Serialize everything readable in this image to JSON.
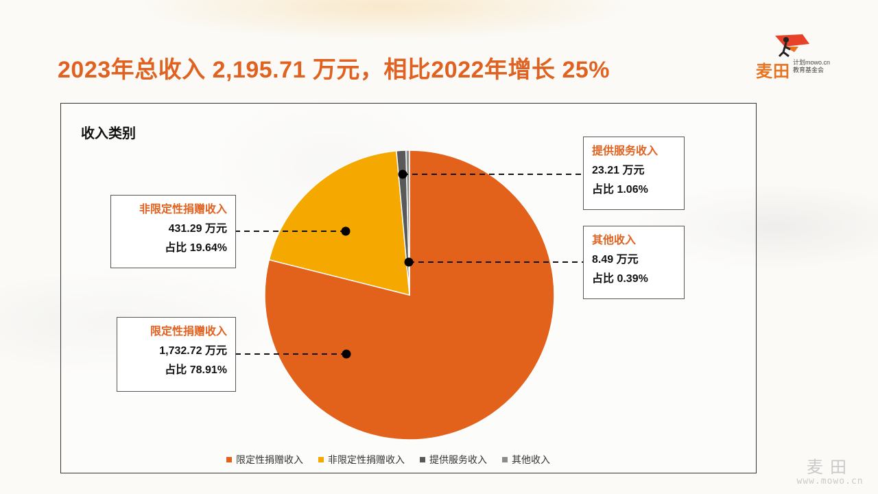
{
  "slide": {
    "title": "2023年总收入 2,195.71 万元，相比2022年增长 25%"
  },
  "logo": {
    "brand": "麦田",
    "line1": "计划mowo.cn",
    "line2": "教育基金会"
  },
  "watermark": {
    "brand": "麦田",
    "url": "www.mowo.cn"
  },
  "chart_data": {
    "type": "pie",
    "title": "收入类别",
    "unit": "万元",
    "categories": [
      "限定性捐赠收入",
      "非限定性捐赠收入",
      "提供服务收入",
      "其他收入"
    ],
    "values": [
      1732.72,
      431.29,
      23.21,
      8.49
    ],
    "percentages": [
      78.91,
      19.64,
      1.06,
      0.39
    ],
    "colors": [
      "#e2621b",
      "#f5a800",
      "#595959",
      "#8c8c8c"
    ],
    "legend_position": "bottom",
    "callouts": [
      {
        "name": "限定性捐赠收入",
        "value": "1,732.72 万元",
        "pct": "占比 78.91%"
      },
      {
        "name": "非限定性捐赠收入",
        "value": "431.29 万元",
        "pct": "占比 19.64%"
      },
      {
        "name": "提供服务收入",
        "value": "23.21 万元",
        "pct": "占比 1.06%"
      },
      {
        "name": "其他收入",
        "value": "8.49 万元",
        "pct": "占比 0.39%"
      }
    ]
  }
}
